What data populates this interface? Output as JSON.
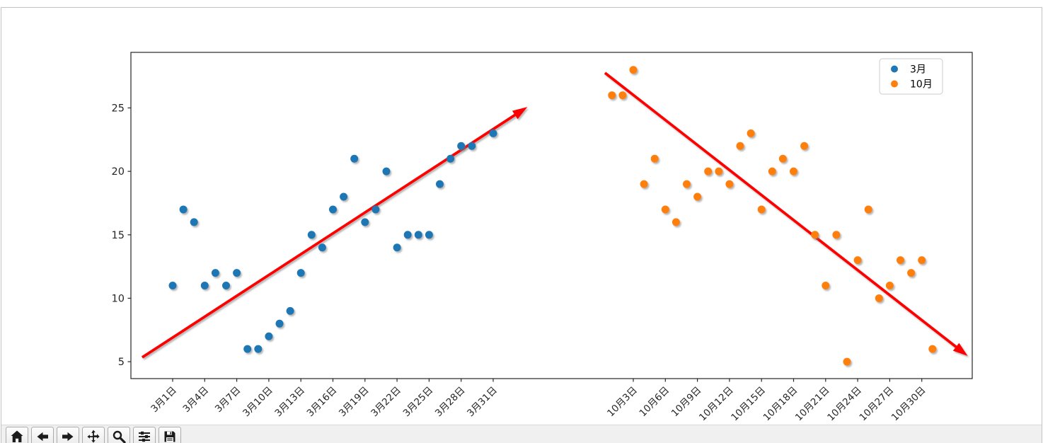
{
  "chart_data": {
    "type": "scatter",
    "title": "",
    "xlabel": "",
    "ylabel": "",
    "grid": false,
    "legend_position": "upper right",
    "ylim": [
      3.7,
      29.4
    ],
    "y_ticks": [
      5,
      10,
      15,
      20,
      25
    ],
    "series": [
      {
        "name": "3月",
        "color": "#1f77b4",
        "days": [
          1,
          2,
          3,
          4,
          5,
          6,
          7,
          8,
          9,
          10,
          11,
          12,
          13,
          14,
          15,
          16,
          17,
          18,
          19,
          20,
          21,
          22,
          23,
          24,
          25,
          26,
          27,
          28,
          29,
          30,
          31
        ],
        "values": [
          11,
          17,
          16,
          11,
          12,
          11,
          12,
          6,
          6,
          7,
          8,
          9,
          12,
          15,
          14,
          17,
          18,
          21,
          16,
          17,
          20,
          14,
          15,
          15,
          15,
          19,
          21,
          22,
          22,
          null,
          23
        ]
      },
      {
        "name": "10月",
        "color": "#ff7f0e",
        "days": [
          1,
          2,
          3,
          4,
          5,
          6,
          7,
          8,
          9,
          10,
          11,
          12,
          13,
          14,
          15,
          16,
          17,
          18,
          19,
          20,
          21,
          22,
          23,
          24,
          25,
          26,
          27,
          28,
          29,
          30,
          31
        ],
        "values": [
          26,
          26,
          28,
          19,
          21,
          17,
          16,
          19,
          18,
          20,
          20,
          19,
          22,
          23,
          17,
          20,
          21,
          20,
          22,
          15,
          11,
          15,
          5,
          13,
          17,
          10,
          11,
          13,
          12,
          13,
          6
        ]
      }
    ],
    "x_ticks": [
      {
        "series": "3月",
        "days": [
          1,
          4,
          7,
          10,
          13,
          16,
          19,
          22,
          25,
          28,
          31
        ],
        "labels": [
          "3月1日",
          "3月4日",
          "3月7日",
          "3月10日",
          "3月13日",
          "3月16日",
          "3月19日",
          "3月22日",
          "3月25日",
          "3月28日",
          "3月31日"
        ]
      },
      {
        "series": "10月",
        "days": [
          3,
          6,
          9,
          12,
          15,
          18,
          21,
          24,
          27,
          30
        ],
        "labels": [
          "10月3日",
          "10月6日",
          "10月9日",
          "10月12日",
          "10月15日",
          "10月18日",
          "10月21日",
          "10月24日",
          "10月27日",
          "10月30日"
        ]
      }
    ],
    "annotations": [
      {
        "name": "march-trend-arrow",
        "type": "arrow",
        "color": "#ff0000",
        "series": "3月",
        "from": {
          "day": -1.85,
          "value": 5.34
        },
        "to": {
          "day": 34.2,
          "value": 25.08
        }
      },
      {
        "name": "october-trend-arrow",
        "type": "arrow",
        "color": "#ff0000",
        "series": "10月",
        "from": {
          "day": 0.35,
          "value": 27.76
        },
        "to": {
          "day": 34.3,
          "value": 5.45
        }
      }
    ]
  },
  "legend": {
    "items": [
      {
        "label": "3月",
        "color": "#1f77b4"
      },
      {
        "label": "10月",
        "color": "#ff7f0e"
      }
    ]
  },
  "toolbar": {
    "buttons": [
      {
        "name": "home"
      },
      {
        "name": "back"
      },
      {
        "name": "forward"
      },
      {
        "name": "pan"
      },
      {
        "name": "zoom"
      },
      {
        "name": "subplots"
      },
      {
        "name": "save"
      }
    ]
  },
  "colors": {
    "axis": "#262626",
    "tick_label": "#262626",
    "toolbar_bg": "#f0f0f0",
    "legend_border": "#cccccc",
    "arrow_red": "#ff0000"
  }
}
